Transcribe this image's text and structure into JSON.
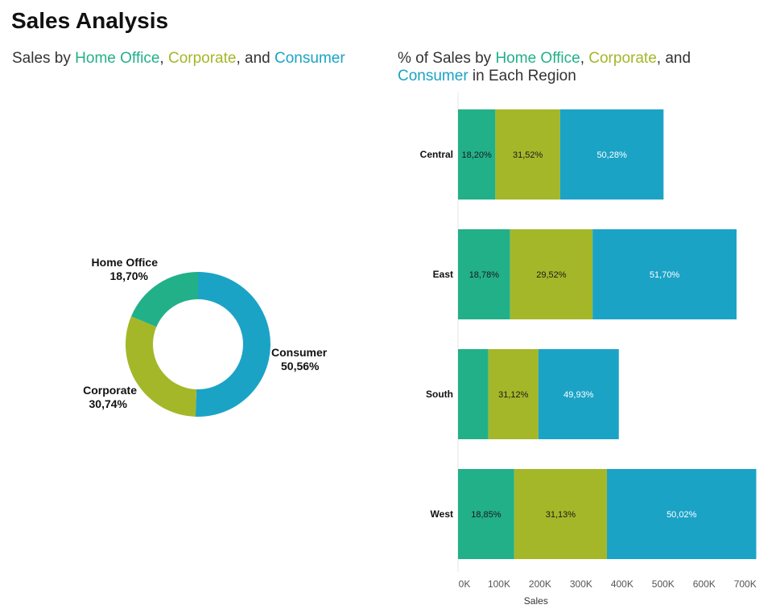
{
  "page": {
    "title": "Sales Analysis"
  },
  "colors": {
    "home_office": "#22B089",
    "corporate": "#A4B729",
    "consumer": "#1BA3C6"
  },
  "left_subtitle": {
    "prefix": "Sales by ",
    "seg1": "Home Office",
    "sep1": ", ",
    "seg2": "Corporate",
    "sep2": ", and ",
    "seg3": "Consumer"
  },
  "right_subtitle": {
    "prefix": "% of Sales by ",
    "seg1": "Home Office",
    "sep1": ", ",
    "seg2": "Corporate",
    "sep2": ", and",
    "seg3": "Consumer",
    "suffix": " in Each Region"
  },
  "chart_data": [
    {
      "type": "pie",
      "subtitle": "Sales by Home Office, Corporate, and Consumer",
      "slices": [
        {
          "label": "Consumer",
          "pct_label": "50,56%",
          "value": 50.56,
          "color_key": "consumer"
        },
        {
          "label": "Corporate",
          "pct_label": "30,74%",
          "value": 30.74,
          "color_key": "corporate"
        },
        {
          "label": "Home Office",
          "pct_label": "18,70%",
          "value": 18.7,
          "color_key": "home_office"
        }
      ]
    },
    {
      "type": "bar",
      "orientation": "horizontal",
      "stacked": true,
      "subtitle": "% of Sales by Home Office, Corporate, and Consumer in Each Region",
      "categories": [
        "Central",
        "East",
        "South",
        "West"
      ],
      "series": [
        {
          "name": "Home Office",
          "color_key": "home_office",
          "values": [
            91000,
            127000,
            74000,
            137000
          ],
          "labels": [
            "18,20%",
            "18,78%",
            "",
            "18,85%"
          ],
          "label_color": "#1a1a1a"
        },
        {
          "name": "Corporate",
          "color_key": "corporate",
          "values": [
            158000,
            201000,
            122000,
            226000
          ],
          "labels": [
            "31,52%",
            "29,52%",
            "31,12%",
            "31,13%"
          ],
          "label_color": "#1a1a1a"
        },
        {
          "name": "Consumer",
          "color_key": "consumer",
          "values": [
            252000,
            351000,
            196000,
            364000
          ],
          "labels": [
            "50,28%",
            "51,70%",
            "49,93%",
            "50,02%"
          ],
          "label_color": "#ffffff"
        }
      ],
      "xlabel": "Sales",
      "xlim": [
        0,
        730000
      ],
      "xticks": [
        {
          "value": 0,
          "label": "0K"
        },
        {
          "value": 100000,
          "label": "100K"
        },
        {
          "value": 200000,
          "label": "200K"
        },
        {
          "value": 300000,
          "label": "300K"
        },
        {
          "value": 400000,
          "label": "400K"
        },
        {
          "value": 500000,
          "label": "500K"
        },
        {
          "value": 600000,
          "label": "600K"
        },
        {
          "value": 700000,
          "label": "700K"
        }
      ]
    }
  ]
}
